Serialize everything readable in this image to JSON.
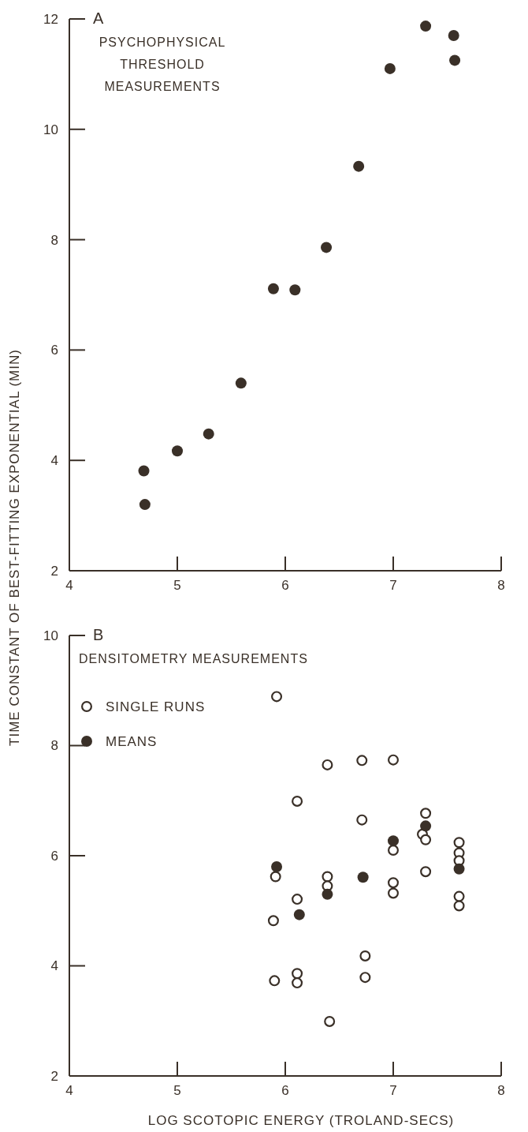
{
  "chart_data": [
    {
      "type": "scatter",
      "title": "A",
      "subtitle": "PSYCHOPHYSICAL THRESHOLD MEASUREMENTS",
      "ylabel": "TIME CONSTANT OF BEST-FITTING EXPONENTIAL (MIN)",
      "xlim": [
        4,
        8
      ],
      "xticks": [
        4,
        5,
        6,
        7,
        8
      ],
      "ylim": [
        2,
        12
      ],
      "yticks": [
        2,
        4,
        6,
        8,
        10,
        12
      ],
      "grid": false,
      "legend": false,
      "marker": "circle",
      "series": [
        {
          "color": "#3a3028",
          "x": [
            7.3,
            7.56,
            7.57,
            6.97,
            6.68,
            6.38,
            5.89,
            6.09,
            5.59,
            5.29,
            5.0,
            4.69,
            4.7
          ],
          "values": [
            11.87,
            11.7,
            11.25,
            11.1,
            9.33,
            7.86,
            7.11,
            7.09,
            5.4,
            4.48,
            4.17,
            3.81,
            3.2
          ]
        }
      ]
    },
    {
      "type": "scatter",
      "title": "B",
      "subtitle": "DENSITOMETRY MEASUREMENTS",
      "xlabel": "LOG SCOTOPIC ENERGY (TROLAND-SECS)",
      "xlim": [
        4,
        8
      ],
      "xticks": [
        4,
        5,
        6,
        7,
        8
      ],
      "ylim": [
        2,
        10
      ],
      "yticks": [
        2,
        4,
        6,
        8,
        10
      ],
      "grid": false,
      "legend": "top left",
      "marker": "circle",
      "series": [
        {
          "name": "SINGLE RUNS",
          "color": "#3a3028",
          "x": [
            5.92,
            6.11,
            6.39,
            6.71,
            7.0,
            6.71,
            7.3,
            7.27,
            7.3,
            7.0,
            7.61,
            7.61,
            7.61,
            7.3,
            5.91,
            6.39,
            6.39,
            7.0,
            7.0,
            6.11,
            7.61,
            7.61,
            5.89,
            5.9,
            6.11,
            6.11,
            6.74,
            6.74,
            6.41
          ],
          "values": [
            8.89,
            6.99,
            7.65,
            7.73,
            7.74,
            6.65,
            6.77,
            6.39,
            6.29,
            6.1,
            6.24,
            6.05,
            5.91,
            5.71,
            5.62,
            5.62,
            5.45,
            5.51,
            5.32,
            5.21,
            5.26,
            5.09,
            4.82,
            3.73,
            3.86,
            3.69,
            4.18,
            3.79,
            2.99
          ]
        },
        {
          "name": "MEANS",
          "color": "#3a3028",
          "x": [
            5.92,
            6.13,
            6.39,
            6.72,
            7.0,
            7.3,
            7.61
          ],
          "values": [
            5.8,
            4.93,
            5.3,
            5.61,
            6.27,
            6.54,
            5.76
          ]
        }
      ]
    }
  ]
}
